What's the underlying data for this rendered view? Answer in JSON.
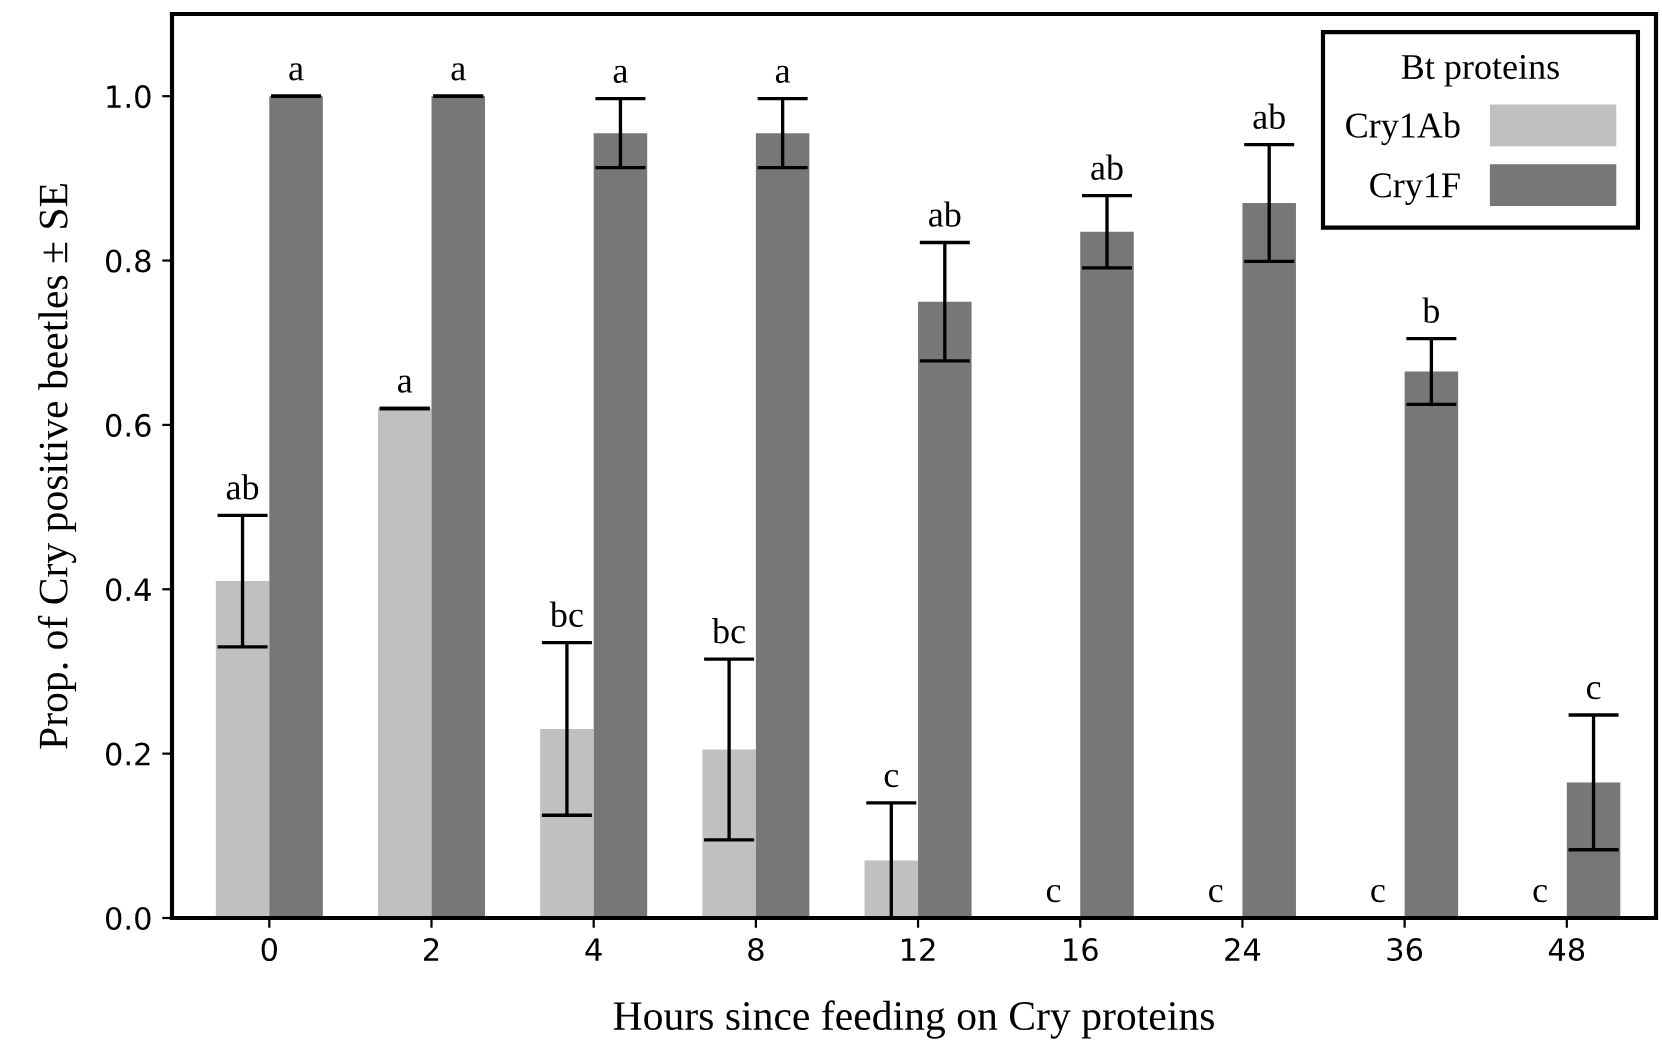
{
  "chart_data": {
    "type": "bar",
    "xlabel": "Hours since feeding on Cry proteins",
    "ylabel": "Prop. of Cry positive beetles ± SE",
    "legend_title": "Bt proteins",
    "legend": "top right",
    "grid": false,
    "categories": [
      "0",
      "2",
      "4",
      "8",
      "12",
      "16",
      "24",
      "36",
      "48"
    ],
    "ylim": [
      0,
      1.1
    ],
    "yticks": [
      {
        "value": 0,
        "label": "0.0"
      },
      {
        "value": 0.2,
        "label": "0.2"
      },
      {
        "value": 0.4,
        "label": "0.4"
      },
      {
        "value": 0.6,
        "label": "0.6"
      },
      {
        "value": 0.8,
        "label": "0.8"
      },
      {
        "value": 1,
        "label": "1.0"
      }
    ],
    "series": [
      {
        "name": "Cry1Ab",
        "color": "#c0c0c0",
        "values": [
          0.41,
          0.62,
          0.23,
          0.205,
          0.07,
          0,
          0,
          0,
          0
        ],
        "errors": [
          0.08,
          0,
          0.105,
          0.11,
          0.07,
          null,
          null,
          null,
          null
        ],
        "value_labels": [
          "ab",
          "a",
          "bc",
          "bc",
          "c",
          "c",
          "c",
          "c",
          "c"
        ]
      },
      {
        "name": "Cry1F",
        "color": "#777777",
        "values": [
          1.0,
          1.0,
          0.955,
          0.955,
          0.75,
          0.835,
          0.87,
          0.665,
          0.165
        ],
        "errors": [
          0,
          0,
          0.042,
          0.042,
          0.072,
          0.044,
          0.071,
          0.04,
          0.082
        ],
        "value_labels": [
          "a",
          "a",
          "a",
          "a",
          "ab",
          "ab",
          "ab",
          "b",
          "c"
        ]
      }
    ]
  }
}
